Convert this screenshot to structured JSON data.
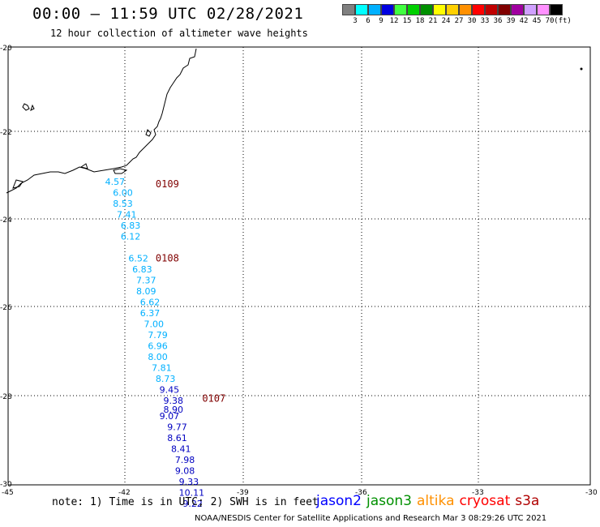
{
  "title": "00:00 – 11:59 UTC 02/28/2021",
  "subtitle": "12 hour collection of altimeter wave heights",
  "colorbar": {
    "colors": [
      "#808080",
      "#00ffff",
      "#00b0ff",
      "#0000e0",
      "#40ff40",
      "#00d000",
      "#009000",
      "#ffff00",
      "#ffd000",
      "#ff9000",
      "#ff0000",
      "#c00000",
      "#800000",
      "#a000a0",
      "#d0a0ff",
      "#ff90ff",
      "#000000"
    ],
    "labels": [
      "3",
      "6",
      "9",
      "12",
      "15",
      "18",
      "21",
      "24",
      "27",
      "30",
      "33",
      "36",
      "39",
      "42",
      "45",
      "70",
      "(ft)"
    ]
  },
  "axes": {
    "x_ticks": [
      "-45",
      "-42",
      "-39",
      "-36",
      "-33",
      "-30"
    ],
    "y_ticks": [
      "-20",
      "-22",
      "-24",
      "-26",
      "-28",
      "-30"
    ]
  },
  "chart_data": {
    "type": "scatter",
    "xlim": [
      -45,
      -30
    ],
    "ylim": [
      -30,
      -20
    ],
    "units": "ft",
    "passes": [
      {
        "id": "0109",
        "lon": -41.2,
        "lat": -23.2,
        "color": "#800000"
      },
      {
        "id": "0108",
        "lon": -41.2,
        "lat": -24.9,
        "color": "#800000"
      },
      {
        "id": "0107",
        "lon": -40.0,
        "lat": -28.1,
        "color": "#800000"
      }
    ],
    "points": [
      {
        "lon": -42.5,
        "lat": -23.15,
        "value": "4.57",
        "color": "#00b0ff"
      },
      {
        "lon": -42.3,
        "lat": -23.4,
        "value": "6.00",
        "color": "#00b0ff"
      },
      {
        "lon": -42.3,
        "lat": -23.65,
        "value": "8.53",
        "color": "#00b0ff"
      },
      {
        "lon": -42.2,
        "lat": -23.9,
        "value": "7.41",
        "color": "#00b0ff"
      },
      {
        "lon": -42.1,
        "lat": -24.15,
        "value": "6.83",
        "color": "#00b0ff"
      },
      {
        "lon": -42.1,
        "lat": -24.4,
        "value": "6.12",
        "color": "#00b0ff"
      },
      {
        "lon": -41.9,
        "lat": -24.9,
        "value": "6.52",
        "color": "#00b0ff"
      },
      {
        "lon": -41.8,
        "lat": -25.15,
        "value": "6.83",
        "color": "#00b0ff"
      },
      {
        "lon": -41.7,
        "lat": -25.4,
        "value": "7.37",
        "color": "#00b0ff"
      },
      {
        "lon": -41.7,
        "lat": -25.65,
        "value": "8.09",
        "color": "#00b0ff"
      },
      {
        "lon": -41.6,
        "lat": -25.9,
        "value": "6.62",
        "color": "#00b0ff"
      },
      {
        "lon": -41.6,
        "lat": -26.15,
        "value": "6.37",
        "color": "#00b0ff"
      },
      {
        "lon": -41.5,
        "lat": -26.4,
        "value": "7.00",
        "color": "#00b0ff"
      },
      {
        "lon": -41.4,
        "lat": -26.65,
        "value": "7.79",
        "color": "#00b0ff"
      },
      {
        "lon": -41.4,
        "lat": -26.9,
        "value": "6.96",
        "color": "#00b0ff"
      },
      {
        "lon": -41.4,
        "lat": -27.15,
        "value": "8.00",
        "color": "#00b0ff"
      },
      {
        "lon": -41.3,
        "lat": -27.4,
        "value": "7.81",
        "color": "#00b0ff"
      },
      {
        "lon": -41.2,
        "lat": -27.65,
        "value": "8.73",
        "color": "#00b0ff"
      },
      {
        "lon": -41.1,
        "lat": -27.9,
        "value": "9.45",
        "color": "#0000c0"
      },
      {
        "lon": -41.0,
        "lat": -28.15,
        "value": "9.38",
        "color": "#0000c0"
      },
      {
        "lon": -41.0,
        "lat": -28.35,
        "value": "8.90",
        "color": "#0000c0"
      },
      {
        "lon": -41.1,
        "lat": -28.5,
        "value": "9.07",
        "color": "#0000c0"
      },
      {
        "lon": -40.9,
        "lat": -28.75,
        "value": "9.77",
        "color": "#0000c0"
      },
      {
        "lon": -40.9,
        "lat": -29.0,
        "value": "8.61",
        "color": "#0000c0"
      },
      {
        "lon": -40.8,
        "lat": -29.25,
        "value": "8.41",
        "color": "#0000c0"
      },
      {
        "lon": -40.7,
        "lat": -29.5,
        "value": "7.98",
        "color": "#0000c0"
      },
      {
        "lon": -40.7,
        "lat": -29.75,
        "value": "9.08",
        "color": "#0000c0"
      },
      {
        "lon": -40.6,
        "lat": -30.0,
        "value": "9.33",
        "color": "#0000c0"
      },
      {
        "lon": -40.6,
        "lat": -30.25,
        "value": "10.11",
        "color": "#0000c0"
      },
      {
        "lon": -40.5,
        "lat": -30.5,
        "value": "9.22",
        "color": "#0000c0"
      }
    ]
  },
  "note": "note: 1) Time is in UTC; 2) SWH is in feet",
  "legend": [
    {
      "name": "jason2",
      "color": "#0000ff"
    },
    {
      "name": "jason3",
      "color": "#009000"
    },
    {
      "name": "altika",
      "color": "#ff9000"
    },
    {
      "name": "cryosat",
      "color": "#ff0000"
    },
    {
      "name": "s3a",
      "color": "#b00000"
    }
  ],
  "footer": "NOAA/NESDIS Center for Satellite Applications and Research   Mar  3 08:29:26 UTC 2021"
}
